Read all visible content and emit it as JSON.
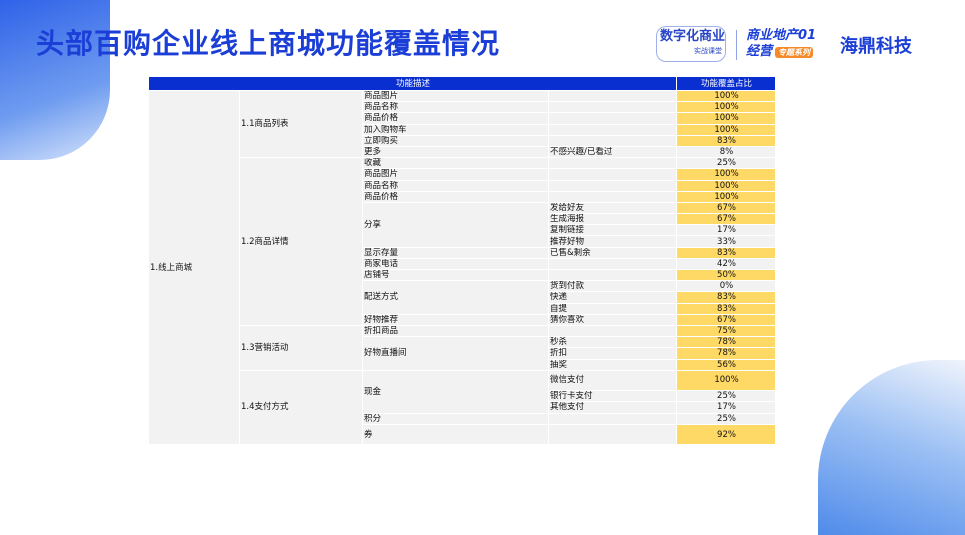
{
  "title": "头部百购企业线上商城功能覆盖情况",
  "logos": {
    "logo1_main": "数字化商业",
    "logo1_sub": "实战课堂",
    "logo2_line1": "商业地产01",
    "logo2_line2": "经营",
    "logo2_tag": "专题系列",
    "logo3": "海鼎科技"
  },
  "colors": {
    "header": "#0a2fd0",
    "highlight": "#ffd966",
    "cell": "#f2f2f2",
    "title": "#1b3fd6"
  },
  "highlight_rule": "values >= 50% highlighted",
  "table": {
    "header_desc": "功能描述",
    "header_ratio": "功能覆盖占比",
    "level1": "1.线上商城",
    "groups": [
      {
        "label": "1.1商品列表",
        "items": [
          {
            "label": "商品图片",
            "value": "100%"
          },
          {
            "label": "商品名称",
            "value": "100%"
          },
          {
            "label": "商品价格",
            "value": "100%"
          },
          {
            "label": "加入购物车",
            "value": "100%"
          },
          {
            "label": "立即购买",
            "value": "83%"
          },
          {
            "label": "更多",
            "subs": [
              {
                "label": "不感兴趣/已看过",
                "value": "8%"
              }
            ]
          }
        ]
      },
      {
        "label": "1.2商品详情",
        "items": [
          {
            "label": "收藏",
            "value": "25%"
          },
          {
            "label": "商品图片",
            "value": "100%"
          },
          {
            "label": "商品名称",
            "value": "100%"
          },
          {
            "label": "商品价格",
            "value": "100%"
          },
          {
            "label": "分享",
            "subs": [
              {
                "label": "发给好友",
                "value": "67%"
              },
              {
                "label": "生成海报",
                "value": "67%"
              },
              {
                "label": "复制链接",
                "value": "17%"
              },
              {
                "label": "推荐好物",
                "value": "33%"
              }
            ]
          },
          {
            "label": "显示存量",
            "subs": [
              {
                "label": "已售&剩余",
                "value": "83%"
              }
            ]
          },
          {
            "label": "商家电话",
            "value": "42%"
          },
          {
            "label": "店铺号",
            "value": "50%"
          },
          {
            "label": "配送方式",
            "subs": [
              {
                "label": "货到付款",
                "value": "0%"
              },
              {
                "label": "快递",
                "value": "83%"
              },
              {
                "label": "自提",
                "value": "83%"
              }
            ]
          },
          {
            "label": "好物推荐",
            "subs": [
              {
                "label": "猜你喜欢",
                "value": "67%"
              }
            ]
          }
        ]
      },
      {
        "label": "1.3营销活动",
        "items": [
          {
            "label": "折扣商品",
            "value": "75%"
          },
          {
            "label": "好物直播间",
            "subs": [
              {
                "label": "秒杀",
                "value": "78%"
              },
              {
                "label": "折扣",
                "value": "78%"
              },
              {
                "label": "抽奖",
                "value": "56%"
              }
            ]
          }
        ]
      },
      {
        "label": "1.4支付方式",
        "items": [
          {
            "label": "现金",
            "subs": [
              {
                "label": "微信支付",
                "value": "100%"
              },
              {
                "label": "银行卡支付",
                "value": "25%"
              },
              {
                "label": "其他支付",
                "value": "17%"
              }
            ]
          },
          {
            "label": "积分",
            "value": "25%"
          },
          {
            "label": "券",
            "value": "92%"
          }
        ]
      }
    ]
  }
}
